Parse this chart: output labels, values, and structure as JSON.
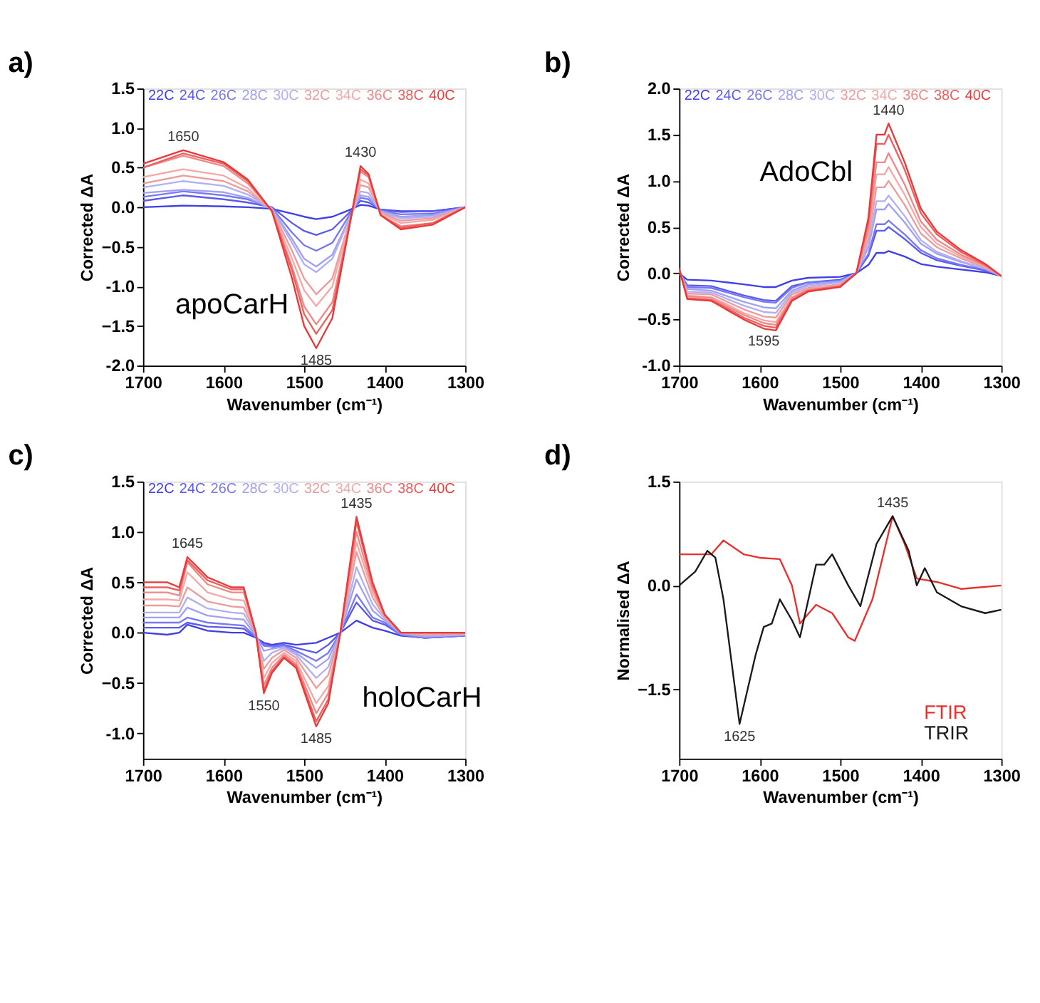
{
  "chart_data": [
    {
      "type": "line",
      "title": "a)",
      "subtitle": "apoCarH",
      "xlabel": "Wavenumber (cm⁻¹)",
      "ylabel": "Corrected ΔA",
      "legend": "top",
      "xlim": [
        1700,
        1300
      ],
      "xticks": [
        1700,
        1600,
        1500,
        1400,
        1300
      ],
      "ylim": [
        -2.0,
        1.5
      ],
      "yticks": [
        {
          "value": -2.0,
          "label": "-2.0"
        },
        -1.5,
        {
          "value": -1.0,
          "label": "-1.0"
        },
        -0.5,
        {
          "value": 0.0,
          "label": "0.0"
        },
        0.5,
        {
          "value": 1.0,
          "label": "1.0"
        },
        1.5
      ],
      "x": [
        1700,
        1650,
        1600,
        1570,
        1540,
        1515,
        1500,
        1485,
        1465,
        1445,
        1430,
        1420,
        1405,
        1380,
        1340,
        1300
      ],
      "series": [
        {
          "name": "22C",
          "color": "#3f3fe8",
          "values": [
            0.0,
            0.02,
            0.01,
            0.0,
            -0.02,
            -0.08,
            -0.12,
            -0.15,
            -0.12,
            -0.04,
            0.03,
            0.02,
            -0.03,
            -0.05,
            -0.05,
            0.0
          ]
        },
        {
          "name": "24C",
          "color": "#5a5aee",
          "values": [
            0.08,
            0.15,
            0.1,
            0.06,
            0.0,
            -0.2,
            -0.3,
            -0.35,
            -0.28,
            -0.08,
            0.08,
            0.06,
            -0.03,
            -0.06,
            -0.05,
            0.0
          ]
        },
        {
          "name": "26C",
          "color": "#7878f0",
          "values": [
            0.13,
            0.2,
            0.15,
            0.1,
            -0.01,
            -0.32,
            -0.48,
            -0.55,
            -0.45,
            -0.12,
            0.12,
            0.1,
            -0.04,
            -0.09,
            -0.08,
            0.0
          ]
        },
        {
          "name": "28C",
          "color": "#a0a0f4",
          "values": [
            0.18,
            0.22,
            0.19,
            0.12,
            -0.02,
            -0.4,
            -0.65,
            -0.75,
            -0.6,
            -0.16,
            0.15,
            0.13,
            -0.05,
            -0.12,
            -0.1,
            0.0
          ]
        },
        {
          "name": "30C",
          "color": "#b0b0f4",
          "values": [
            0.25,
            0.33,
            0.27,
            0.16,
            -0.02,
            -0.45,
            -0.72,
            -0.82,
            -0.65,
            -0.18,
            0.2,
            0.18,
            -0.06,
            -0.14,
            -0.12,
            0.0
          ]
        },
        {
          "name": "32C",
          "color": "#ec9c9c",
          "values": [
            0.3,
            0.4,
            0.33,
            0.2,
            -0.03,
            -0.55,
            -0.9,
            -1.1,
            -0.9,
            -0.22,
            0.28,
            0.25,
            -0.07,
            -0.17,
            -0.14,
            0.0
          ]
        },
        {
          "name": "34C",
          "color": "#f4a8a8",
          "values": [
            0.38,
            0.48,
            0.4,
            0.24,
            -0.04,
            -0.65,
            -1.05,
            -1.25,
            -1.0,
            -0.25,
            0.35,
            0.3,
            -0.08,
            -0.2,
            -0.16,
            0.0
          ]
        },
        {
          "name": "36C",
          "color": "#f08888",
          "values": [
            0.5,
            0.65,
            0.52,
            0.3,
            -0.04,
            -0.75,
            -1.25,
            -1.48,
            -1.2,
            -0.28,
            0.45,
            0.38,
            -0.1,
            -0.24,
            -0.2,
            0.0
          ]
        },
        {
          "name": "38C",
          "color": "#ec6060",
          "values": [
            0.5,
            0.68,
            0.55,
            0.33,
            -0.05,
            -0.8,
            -1.35,
            -1.6,
            -1.3,
            -0.3,
            0.48,
            0.4,
            -0.1,
            -0.26,
            -0.2,
            0.0
          ]
        },
        {
          "name": "40C",
          "color": "#e83a3a",
          "values": [
            0.55,
            0.72,
            0.57,
            0.35,
            -0.05,
            -0.9,
            -1.5,
            -1.78,
            -1.4,
            -0.3,
            0.52,
            0.42,
            -0.1,
            -0.28,
            -0.22,
            0.0
          ]
        }
      ],
      "annotations": [
        {
          "text": "1650",
          "x": 1650,
          "y": 0.72
        },
        {
          "text": "1430",
          "x": 1430,
          "y": 0.52
        },
        {
          "text": "1485",
          "x": 1485,
          "y": -1.78
        }
      ]
    },
    {
      "type": "line",
      "title": "b)",
      "subtitle": "AdoCbl",
      "xlabel": "Wavenumber (cm⁻¹)",
      "ylabel": "Corrected ΔA",
      "legend": "top",
      "xlim": [
        1700,
        1300
      ],
      "xticks": [
        1700,
        1600,
        1500,
        1400,
        1300
      ],
      "ylim": [
        -1.0,
        2.0
      ],
      "yticks": [
        {
          "value": -1.0,
          "label": "-1.0"
        },
        -0.5,
        {
          "value": 0.0,
          "label": "0.0"
        },
        0.5,
        {
          "value": 1.0,
          "label": "1.0"
        },
        1.5,
        {
          "value": 2.0,
          "label": "2.0"
        }
      ],
      "x": [
        1700,
        1690,
        1660,
        1640,
        1620,
        1595,
        1580,
        1560,
        1540,
        1500,
        1480,
        1465,
        1455,
        1445,
        1440,
        1420,
        1400,
        1380,
        1350,
        1320,
        1300
      ],
      "series": [
        {
          "name": "22C",
          "color": "#3f3fe8",
          "values": [
            0.0,
            -0.07,
            -0.08,
            -0.1,
            -0.12,
            -0.15,
            -0.15,
            -0.08,
            -0.05,
            -0.04,
            0.0,
            0.09,
            0.22,
            0.22,
            0.24,
            0.18,
            0.1,
            0.07,
            0.04,
            0.01,
            -0.03
          ]
        },
        {
          "name": "24C",
          "color": "#5a5aee",
          "values": [
            0.02,
            -0.13,
            -0.14,
            -0.19,
            -0.24,
            -0.29,
            -0.3,
            -0.14,
            -0.1,
            -0.07,
            0.0,
            0.19,
            0.46,
            0.46,
            0.5,
            0.37,
            0.22,
            0.14,
            0.08,
            0.03,
            -0.03
          ]
        },
        {
          "name": "26C",
          "color": "#7878f0",
          "values": [
            0.03,
            -0.15,
            -0.16,
            -0.21,
            -0.26,
            -0.31,
            -0.32,
            -0.16,
            -0.1,
            -0.08,
            0.0,
            0.21,
            0.53,
            0.53,
            0.57,
            0.42,
            0.25,
            0.16,
            0.09,
            0.04,
            -0.03
          ]
        },
        {
          "name": "28C",
          "color": "#a0a0f4",
          "values": [
            0.03,
            -0.17,
            -0.19,
            -0.25,
            -0.31,
            -0.37,
            -0.38,
            -0.19,
            -0.12,
            -0.09,
            0.0,
            0.28,
            0.69,
            0.69,
            0.75,
            0.55,
            0.32,
            0.21,
            0.12,
            0.05,
            -0.03
          ]
        },
        {
          "name": "30C",
          "color": "#b0b0f4",
          "values": [
            0.04,
            -0.2,
            -0.21,
            -0.28,
            -0.35,
            -0.42,
            -0.43,
            -0.21,
            -0.14,
            -0.1,
            0.0,
            0.31,
            0.78,
            0.78,
            0.84,
            0.62,
            0.36,
            0.23,
            0.13,
            0.05,
            -0.03
          ]
        },
        {
          "name": "32C",
          "color": "#ec9c9c",
          "values": [
            0.04,
            -0.22,
            -0.23,
            -0.31,
            -0.39,
            -0.47,
            -0.48,
            -0.23,
            -0.16,
            -0.12,
            0.0,
            0.37,
            0.93,
            0.93,
            1.0,
            0.74,
            0.43,
            0.28,
            0.16,
            0.06,
            -0.03
          ]
        },
        {
          "name": "34C",
          "color": "#f4a8a8",
          "values": [
            0.04,
            -0.24,
            -0.26,
            -0.34,
            -0.43,
            -0.51,
            -0.53,
            -0.26,
            -0.17,
            -0.13,
            0.0,
            0.43,
            1.07,
            1.07,
            1.15,
            0.85,
            0.5,
            0.32,
            0.18,
            0.07,
            -0.03
          ]
        },
        {
          "name": "36C",
          "color": "#f08888",
          "values": [
            0.05,
            -0.25,
            -0.27,
            -0.36,
            -0.45,
            -0.54,
            -0.56,
            -0.27,
            -0.18,
            -0.14,
            0.0,
            0.48,
            1.2,
            1.2,
            1.3,
            0.96,
            0.56,
            0.36,
            0.2,
            0.08,
            -0.03
          ]
        },
        {
          "name": "38C",
          "color": "#ec6060",
          "values": [
            0.05,
            -0.27,
            -0.29,
            -0.38,
            -0.48,
            -0.57,
            -0.59,
            -0.29,
            -0.19,
            -0.14,
            0.0,
            0.56,
            1.4,
            1.4,
            1.5,
            1.12,
            0.65,
            0.42,
            0.23,
            0.09,
            -0.03
          ]
        },
        {
          "name": "40C",
          "color": "#e83a3a",
          "values": [
            0.05,
            -0.28,
            -0.3,
            -0.4,
            -0.5,
            -0.6,
            -0.62,
            -0.3,
            -0.2,
            -0.15,
            0.0,
            0.6,
            1.5,
            1.5,
            1.62,
            1.2,
            0.7,
            0.45,
            0.25,
            0.1,
            -0.03
          ]
        }
      ],
      "annotations": [
        {
          "text": "1440",
          "x": 1440,
          "y": 1.62
        },
        {
          "text": "1595",
          "x": 1595,
          "y": -0.6
        }
      ]
    },
    {
      "type": "line",
      "title": "c)",
      "subtitle": "holoCarH",
      "xlabel": "Wavenumber (cm⁻¹)",
      "ylabel": "Corrected ΔA",
      "legend": "top",
      "xlim": [
        1700,
        1300
      ],
      "xticks": [
        1700,
        1600,
        1500,
        1400,
        1300
      ],
      "ylim": [
        -1.25,
        1.5
      ],
      "yticks": [
        {
          "value": -1.0,
          "label": "-1.0"
        },
        -0.5,
        {
          "value": 0.0,
          "label": "0.0"
        },
        0.5,
        {
          "value": 1.0,
          "label": "1.0"
        },
        1.5
      ],
      "x": [
        1700,
        1670,
        1655,
        1645,
        1620,
        1590,
        1575,
        1560,
        1550,
        1540,
        1525,
        1510,
        1485,
        1470,
        1455,
        1435,
        1415,
        1400,
        1380,
        1350,
        1300
      ],
      "series": [
        {
          "name": "22C",
          "color": "#3f3fe8",
          "values": [
            0.0,
            -0.02,
            0.0,
            0.08,
            0.02,
            0.0,
            0.0,
            -0.05,
            -0.1,
            -0.12,
            -0.1,
            -0.12,
            -0.1,
            -0.05,
            0.0,
            0.12,
            0.05,
            0.02,
            -0.03,
            -0.05,
            -0.03
          ]
        },
        {
          "name": "24C",
          "color": "#5a5aee",
          "values": [
            0.05,
            0.05,
            0.05,
            0.1,
            0.06,
            0.05,
            0.04,
            -0.05,
            -0.12,
            -0.13,
            -0.12,
            -0.15,
            -0.2,
            -0.12,
            0.0,
            0.3,
            0.12,
            0.08,
            -0.02,
            -0.05,
            -0.03
          ]
        },
        {
          "name": "26C",
          "color": "#7878f0",
          "values": [
            0.1,
            0.1,
            0.1,
            0.15,
            0.1,
            0.08,
            0.07,
            -0.04,
            -0.13,
            -0.14,
            -0.13,
            -0.18,
            -0.28,
            -0.2,
            0.0,
            0.38,
            0.15,
            0.1,
            -0.02,
            -0.05,
            -0.03
          ]
        },
        {
          "name": "28C",
          "color": "#a0a0f4",
          "values": [
            0.15,
            0.15,
            0.15,
            0.25,
            0.17,
            0.14,
            0.13,
            -0.03,
            -0.18,
            -0.16,
            -0.14,
            -0.2,
            -0.35,
            -0.26,
            0.0,
            0.53,
            0.22,
            0.12,
            -0.01,
            -0.04,
            -0.02
          ]
        },
        {
          "name": "30C",
          "color": "#b0b0f4",
          "values": [
            0.2,
            0.2,
            0.2,
            0.35,
            0.24,
            0.2,
            0.19,
            -0.02,
            -0.28,
            -0.2,
            -0.15,
            -0.22,
            -0.45,
            -0.34,
            0.0,
            0.65,
            0.28,
            0.14,
            0.0,
            -0.03,
            -0.02
          ]
        },
        {
          "name": "32C",
          "color": "#ec9c9c",
          "values": [
            0.27,
            0.27,
            0.26,
            0.45,
            0.31,
            0.26,
            0.25,
            -0.01,
            -0.36,
            -0.25,
            -0.17,
            -0.25,
            -0.55,
            -0.42,
            0.0,
            0.8,
            0.35,
            0.15,
            0.0,
            -0.02,
            -0.01
          ]
        },
        {
          "name": "34C",
          "color": "#f4a8a8",
          "values": [
            0.33,
            0.33,
            0.32,
            0.6,
            0.4,
            0.33,
            0.32,
            0.0,
            -0.45,
            -0.3,
            -0.2,
            -0.28,
            -0.7,
            -0.53,
            0.0,
            0.9,
            0.4,
            0.16,
            0.0,
            -0.01,
            0.0
          ]
        },
        {
          "name": "36C",
          "color": "#f08888",
          "values": [
            0.4,
            0.4,
            0.37,
            0.7,
            0.48,
            0.4,
            0.4,
            0.0,
            -0.52,
            -0.35,
            -0.22,
            -0.31,
            -0.8,
            -0.6,
            0.0,
            1.0,
            0.44,
            0.17,
            0.0,
            0.0,
            0.0
          ]
        },
        {
          "name": "38C",
          "color": "#ec6060",
          "values": [
            0.45,
            0.45,
            0.42,
            0.72,
            0.52,
            0.43,
            0.43,
            0.0,
            -0.57,
            -0.38,
            -0.24,
            -0.33,
            -0.88,
            -0.66,
            0.0,
            1.1,
            0.48,
            0.18,
            0.0,
            0.0,
            0.0
          ]
        },
        {
          "name": "40C",
          "color": "#e83a3a",
          "values": [
            0.5,
            0.5,
            0.45,
            0.75,
            0.55,
            0.45,
            0.45,
            0.0,
            -0.6,
            -0.4,
            -0.25,
            -0.35,
            -0.93,
            -0.7,
            0.0,
            1.15,
            0.5,
            0.18,
            0.0,
            0.0,
            0.0
          ]
        }
      ],
      "annotations": [
        {
          "text": "1645",
          "x": 1645,
          "y": 0.75
        },
        {
          "text": "1435",
          "x": 1435,
          "y": 1.15
        },
        {
          "text": "1550",
          "x": 1550,
          "y": -0.6
        },
        {
          "text": "1485",
          "x": 1485,
          "y": -0.93
        }
      ]
    },
    {
      "type": "line",
      "title": "d)",
      "xlabel": "Wavenumber (cm⁻¹)",
      "ylabel": "Normalised ΔA",
      "legend": "bottom right",
      "xlim": [
        1700,
        1300
      ],
      "xticks": [
        1700,
        1600,
        1500,
        1400,
        1300
      ],
      "ylim": [
        -2.5,
        1.5
      ],
      "yticks": [
        -1.5,
        {
          "value": 0.0,
          "label": "0.0"
        },
        1.5
      ],
      "series": [
        {
          "name": "FTIR",
          "color": "#e8302c",
          "x": [
            1700,
            1660,
            1645,
            1620,
            1600,
            1575,
            1560,
            1550,
            1530,
            1510,
            1490,
            1482,
            1460,
            1435,
            1420,
            1405,
            1380,
            1350,
            1300
          ],
          "values": [
            0.45,
            0.45,
            0.65,
            0.45,
            0.4,
            0.38,
            0.0,
            -0.55,
            -0.28,
            -0.4,
            -0.75,
            -0.8,
            -0.2,
            1.0,
            0.6,
            0.1,
            0.05,
            -0.05,
            0.0
          ]
        },
        {
          "name": "TRIR",
          "color": "#1a1a1a",
          "x": [
            1700,
            1680,
            1665,
            1655,
            1645,
            1625,
            1605,
            1595,
            1585,
            1575,
            1560,
            1550,
            1530,
            1520,
            1510,
            1490,
            1475,
            1455,
            1435,
            1415,
            1405,
            1395,
            1380,
            1350,
            1320,
            1300
          ],
          "values": [
            0.0,
            0.2,
            0.5,
            0.4,
            -0.2,
            -2.0,
            -1.0,
            -0.6,
            -0.55,
            -0.2,
            -0.5,
            -0.75,
            0.3,
            0.3,
            0.45,
            0.0,
            -0.3,
            0.6,
            1.0,
            0.5,
            0.0,
            0.25,
            -0.1,
            -0.3,
            -0.4,
            -0.35
          ]
        }
      ],
      "annotations": [
        {
          "text": "1435",
          "x": 1435,
          "y": 1.0
        },
        {
          "text": "1625",
          "x": 1625,
          "y": -2.0
        }
      ]
    }
  ]
}
